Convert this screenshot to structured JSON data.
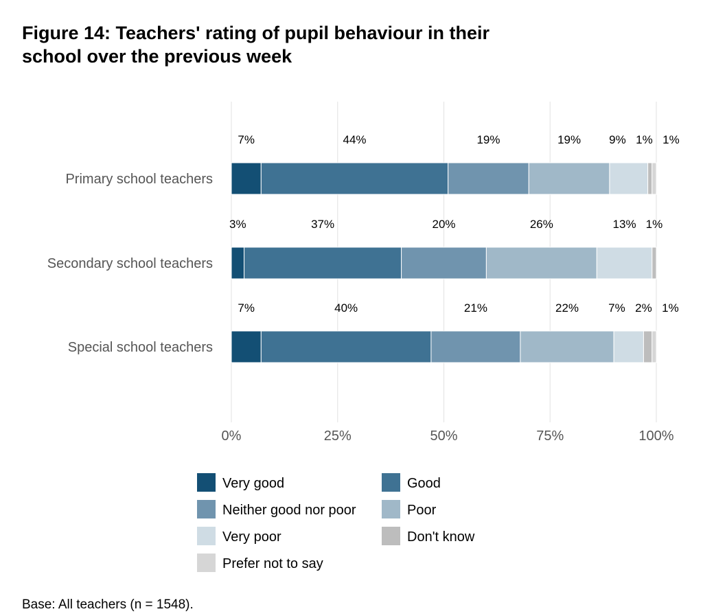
{
  "chart_data": {
    "type": "bar",
    "orientation": "horizontal",
    "stacked": true,
    "title": "Figure 14: Teachers' rating of pupil behaviour in their school over the previous week",
    "title_lines": [
      "Figure 14: Teachers' rating of pupil behaviour in their",
      "school over the previous week"
    ],
    "categories": [
      "Primary school teachers",
      "Secondary school teachers",
      "Special school teachers"
    ],
    "series": [
      {
        "name": "Very good",
        "color": "#134f74",
        "values": [
          7,
          3,
          7
        ]
      },
      {
        "name": "Good",
        "color": "#3f7293",
        "values": [
          44,
          37,
          40
        ]
      },
      {
        "name": "Neither good nor poor",
        "color": "#7094ae",
        "values": [
          19,
          20,
          21
        ]
      },
      {
        "name": "Poor",
        "color": "#a0b8c8",
        "values": [
          19,
          26,
          22
        ]
      },
      {
        "name": "Very poor",
        "color": "#cfdce4",
        "values": [
          9,
          13,
          7
        ]
      },
      {
        "name": "Don't know",
        "color": "#bdbdbd",
        "values": [
          1,
          1,
          2
        ]
      },
      {
        "name": "Prefer not to say",
        "color": "#d6d6d6",
        "values": [
          1,
          null,
          1
        ]
      }
    ],
    "xlim": [
      0,
      100
    ],
    "xticks": [
      "0%",
      "25%",
      "50%",
      "75%",
      "100%"
    ],
    "grid": "vertical",
    "legend_position": "bottom",
    "footnote": "Base: All teachers (n = 1548)."
  }
}
